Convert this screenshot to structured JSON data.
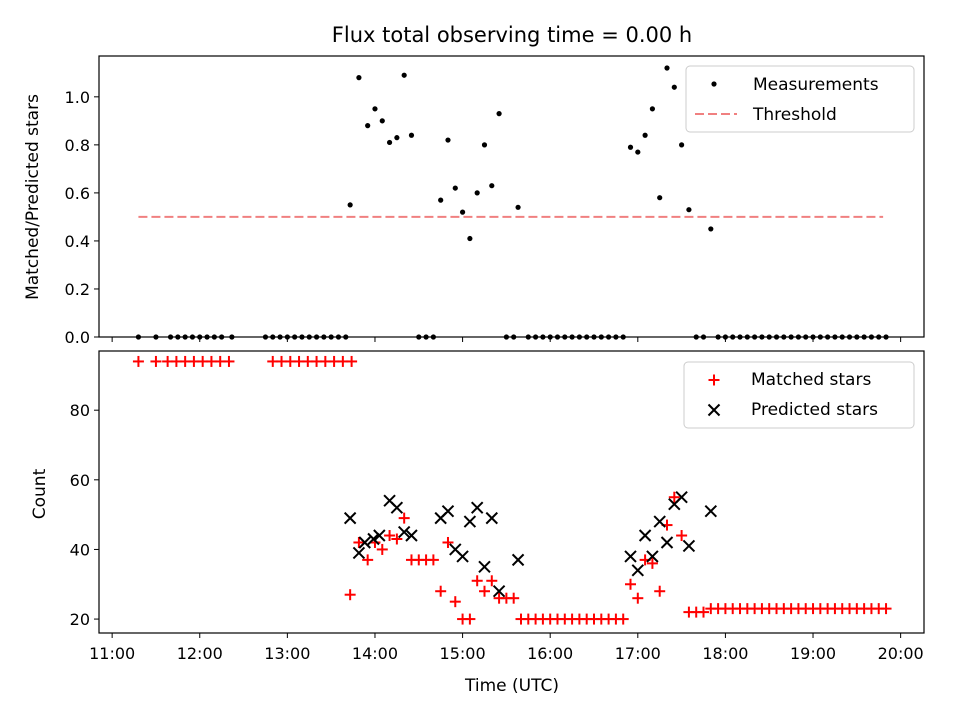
{
  "title": "Flux total observing time = 0.00 h",
  "colors": {
    "measurements": "#000000",
    "threshold": "#f08080",
    "matched": "#ff0000",
    "predicted": "#000000"
  },
  "chart_data": [
    {
      "type": "scatter",
      "ylabel": "Matched/Predicted stars",
      "xlim": [
        "10:51",
        "20:16"
      ],
      "ylim": [
        0,
        1.17
      ],
      "yticks": [
        "0.0",
        "0.2",
        "0.4",
        "0.6",
        "0.8",
        "1.0"
      ],
      "grid": false,
      "legend_position": "top-right",
      "legend": [
        "Measurements",
        "Threshold"
      ],
      "threshold": {
        "value": 0.5,
        "x_start": "11:18",
        "x_end": "19:48"
      },
      "series": [
        {
          "name": "Measurements",
          "marker": "dot",
          "points": [
            [
              "11:18",
              0
            ],
            [
              "11:30",
              0
            ],
            [
              "11:40",
              0
            ],
            [
              "11:45",
              0
            ],
            [
              "11:50",
              0
            ],
            [
              "11:55",
              0
            ],
            [
              "12:00",
              0
            ],
            [
              "12:05",
              0
            ],
            [
              "12:10",
              0
            ],
            [
              "12:15",
              0
            ],
            [
              "12:22",
              0
            ],
            [
              "12:45",
              0
            ],
            [
              "12:50",
              0
            ],
            [
              "12:55",
              0
            ],
            [
              "13:00",
              0
            ],
            [
              "13:05",
              0
            ],
            [
              "13:10",
              0
            ],
            [
              "13:15",
              0
            ],
            [
              "13:20",
              0
            ],
            [
              "13:25",
              0
            ],
            [
              "13:30",
              0
            ],
            [
              "13:35",
              0
            ],
            [
              "13:40",
              0
            ],
            [
              "13:43",
              0.55
            ],
            [
              "13:49",
              1.08
            ],
            [
              "13:55",
              0.88
            ],
            [
              "14:00",
              0.95
            ],
            [
              "14:05",
              0.9
            ],
            [
              "14:10",
              0.81
            ],
            [
              "14:15",
              0.83
            ],
            [
              "14:20",
              1.09
            ],
            [
              "14:25",
              0.84
            ],
            [
              "14:30",
              0
            ],
            [
              "14:35",
              0
            ],
            [
              "14:40",
              0
            ],
            [
              "14:45",
              0.57
            ],
            [
              "14:50",
              0.82
            ],
            [
              "14:55",
              0.62
            ],
            [
              "15:00",
              0.52
            ],
            [
              "15:05",
              0.41
            ],
            [
              "15:10",
              0.6
            ],
            [
              "15:15",
              0.8
            ],
            [
              "15:20",
              0.63
            ],
            [
              "15:25",
              0.93
            ],
            [
              "15:30",
              0
            ],
            [
              "15:35",
              0
            ],
            [
              "15:38",
              0.54
            ],
            [
              "15:45",
              0
            ],
            [
              "15:50",
              0
            ],
            [
              "15:55",
              0
            ],
            [
              "16:00",
              0
            ],
            [
              "16:05",
              0
            ],
            [
              "16:10",
              0
            ],
            [
              "16:15",
              0
            ],
            [
              "16:20",
              0
            ],
            [
              "16:25",
              0
            ],
            [
              "16:30",
              0
            ],
            [
              "16:35",
              0
            ],
            [
              "16:40",
              0
            ],
            [
              "16:45",
              0
            ],
            [
              "16:50",
              0
            ],
            [
              "16:55",
              0.79
            ],
            [
              "17:00",
              0.77
            ],
            [
              "17:05",
              0.84
            ],
            [
              "17:10",
              0.95
            ],
            [
              "17:15",
              0.58
            ],
            [
              "17:20",
              1.12
            ],
            [
              "17:25",
              1.04
            ],
            [
              "17:30",
              0.8
            ],
            [
              "17:35",
              0.53
            ],
            [
              "17:40",
              0
            ],
            [
              "17:45",
              0
            ],
            [
              "17:50",
              0.45
            ],
            [
              "17:55",
              0
            ],
            [
              "18:00",
              0
            ],
            [
              "18:05",
              0
            ],
            [
              "18:10",
              0
            ],
            [
              "18:15",
              0
            ],
            [
              "18:20",
              0
            ],
            [
              "18:25",
              0
            ],
            [
              "18:30",
              0
            ],
            [
              "18:35",
              0
            ],
            [
              "18:40",
              0
            ],
            [
              "18:45",
              0
            ],
            [
              "18:50",
              0
            ],
            [
              "18:55",
              0
            ],
            [
              "19:00",
              0
            ],
            [
              "19:05",
              0
            ],
            [
              "19:10",
              0
            ],
            [
              "19:15",
              0
            ],
            [
              "19:20",
              0
            ],
            [
              "19:25",
              0
            ],
            [
              "19:30",
              0
            ],
            [
              "19:35",
              0
            ],
            [
              "19:40",
              0
            ],
            [
              "19:45",
              0
            ],
            [
              "19:50",
              0
            ]
          ]
        }
      ]
    },
    {
      "type": "scatter",
      "xlabel": "Time (UTC)",
      "ylabel": "Count",
      "xlim": [
        "10:51",
        "20:16"
      ],
      "ylim": [
        16,
        97
      ],
      "yticks": [
        "20",
        "40",
        "60",
        "80"
      ],
      "xticks": [
        "11:00",
        "12:00",
        "13:00",
        "14:00",
        "15:00",
        "16:00",
        "17:00",
        "18:00",
        "19:00",
        "20:00"
      ],
      "grid": false,
      "legend_position": "top-right",
      "legend": [
        "Matched stars",
        "Predicted stars"
      ],
      "series": [
        {
          "name": "Matched stars",
          "marker": "plus",
          "points": [
            [
              "11:18",
              94
            ],
            [
              "11:30",
              94
            ],
            [
              "11:38",
              94
            ],
            [
              "11:44",
              94
            ],
            [
              "11:50",
              94
            ],
            [
              "11:56",
              94
            ],
            [
              "12:02",
              94
            ],
            [
              "12:08",
              94
            ],
            [
              "12:14",
              94
            ],
            [
              "12:20",
              94
            ],
            [
              "12:50",
              94
            ],
            [
              "12:56",
              94
            ],
            [
              "13:02",
              94
            ],
            [
              "13:08",
              94
            ],
            [
              "13:14",
              94
            ],
            [
              "13:20",
              94
            ],
            [
              "13:26",
              94
            ],
            [
              "13:32",
              94
            ],
            [
              "13:38",
              94
            ],
            [
              "13:44",
              94
            ],
            [
              "13:43",
              27
            ],
            [
              "13:49",
              42
            ],
            [
              "13:55",
              37
            ],
            [
              "14:00",
              42
            ],
            [
              "14:05",
              40
            ],
            [
              "14:10",
              44
            ],
            [
              "14:15",
              43
            ],
            [
              "14:20",
              49
            ],
            [
              "14:25",
              37
            ],
            [
              "14:30",
              37
            ],
            [
              "14:35",
              37
            ],
            [
              "14:40",
              37
            ],
            [
              "14:45",
              28
            ],
            [
              "14:50",
              42
            ],
            [
              "14:55",
              25
            ],
            [
              "15:00",
              20
            ],
            [
              "15:05",
              20
            ],
            [
              "15:10",
              31
            ],
            [
              "15:15",
              28
            ],
            [
              "15:20",
              31
            ],
            [
              "15:25",
              26
            ],
            [
              "15:30",
              26
            ],
            [
              "15:35",
              26
            ],
            [
              "15:40",
              20
            ],
            [
              "15:45",
              20
            ],
            [
              "15:50",
              20
            ],
            [
              "15:55",
              20
            ],
            [
              "16:00",
              20
            ],
            [
              "16:05",
              20
            ],
            [
              "16:10",
              20
            ],
            [
              "16:15",
              20
            ],
            [
              "16:20",
              20
            ],
            [
              "16:25",
              20
            ],
            [
              "16:30",
              20
            ],
            [
              "16:35",
              20
            ],
            [
              "16:40",
              20
            ],
            [
              "16:45",
              20
            ],
            [
              "16:50",
              20
            ],
            [
              "16:55",
              30
            ],
            [
              "17:00",
              26
            ],
            [
              "17:05",
              37
            ],
            [
              "17:10",
              36
            ],
            [
              "17:15",
              28
            ],
            [
              "17:20",
              47
            ],
            [
              "17:25",
              55
            ],
            [
              "17:30",
              44
            ],
            [
              "17:35",
              22
            ],
            [
              "17:40",
              22
            ],
            [
              "17:45",
              22
            ],
            [
              "17:50",
              23
            ],
            [
              "17:55",
              23
            ],
            [
              "18:00",
              23
            ],
            [
              "18:05",
              23
            ],
            [
              "18:10",
              23
            ],
            [
              "18:15",
              23
            ],
            [
              "18:20",
              23
            ],
            [
              "18:25",
              23
            ],
            [
              "18:30",
              23
            ],
            [
              "18:35",
              23
            ],
            [
              "18:40",
              23
            ],
            [
              "18:45",
              23
            ],
            [
              "18:50",
              23
            ],
            [
              "18:55",
              23
            ],
            [
              "19:00",
              23
            ],
            [
              "19:05",
              23
            ],
            [
              "19:10",
              23
            ],
            [
              "19:15",
              23
            ],
            [
              "19:20",
              23
            ],
            [
              "19:25",
              23
            ],
            [
              "19:30",
              23
            ],
            [
              "19:35",
              23
            ],
            [
              "19:40",
              23
            ],
            [
              "19:45",
              23
            ],
            [
              "19:50",
              23
            ]
          ]
        },
        {
          "name": "Predicted stars",
          "marker": "x",
          "points": [
            [
              "13:43",
              49
            ],
            [
              "13:49",
              39
            ],
            [
              "13:53",
              42
            ],
            [
              "13:59",
              43
            ],
            [
              "14:03",
              44
            ],
            [
              "14:10",
              54
            ],
            [
              "14:15",
              52
            ],
            [
              "14:20",
              45
            ],
            [
              "14:25",
              44
            ],
            [
              "14:45",
              49
            ],
            [
              "14:50",
              51
            ],
            [
              "14:55",
              40
            ],
            [
              "15:00",
              38
            ],
            [
              "15:05",
              48
            ],
            [
              "15:10",
              52
            ],
            [
              "15:15",
              35
            ],
            [
              "15:20",
              49
            ],
            [
              "15:25",
              28
            ],
            [
              "15:38",
              37
            ],
            [
              "16:55",
              38
            ],
            [
              "17:00",
              34
            ],
            [
              "17:05",
              44
            ],
            [
              "17:10",
              38
            ],
            [
              "17:15",
              48
            ],
            [
              "17:20",
              42
            ],
            [
              "17:25",
              53
            ],
            [
              "17:30",
              55
            ],
            [
              "17:35",
              41
            ],
            [
              "17:50",
              51
            ]
          ]
        }
      ]
    }
  ]
}
